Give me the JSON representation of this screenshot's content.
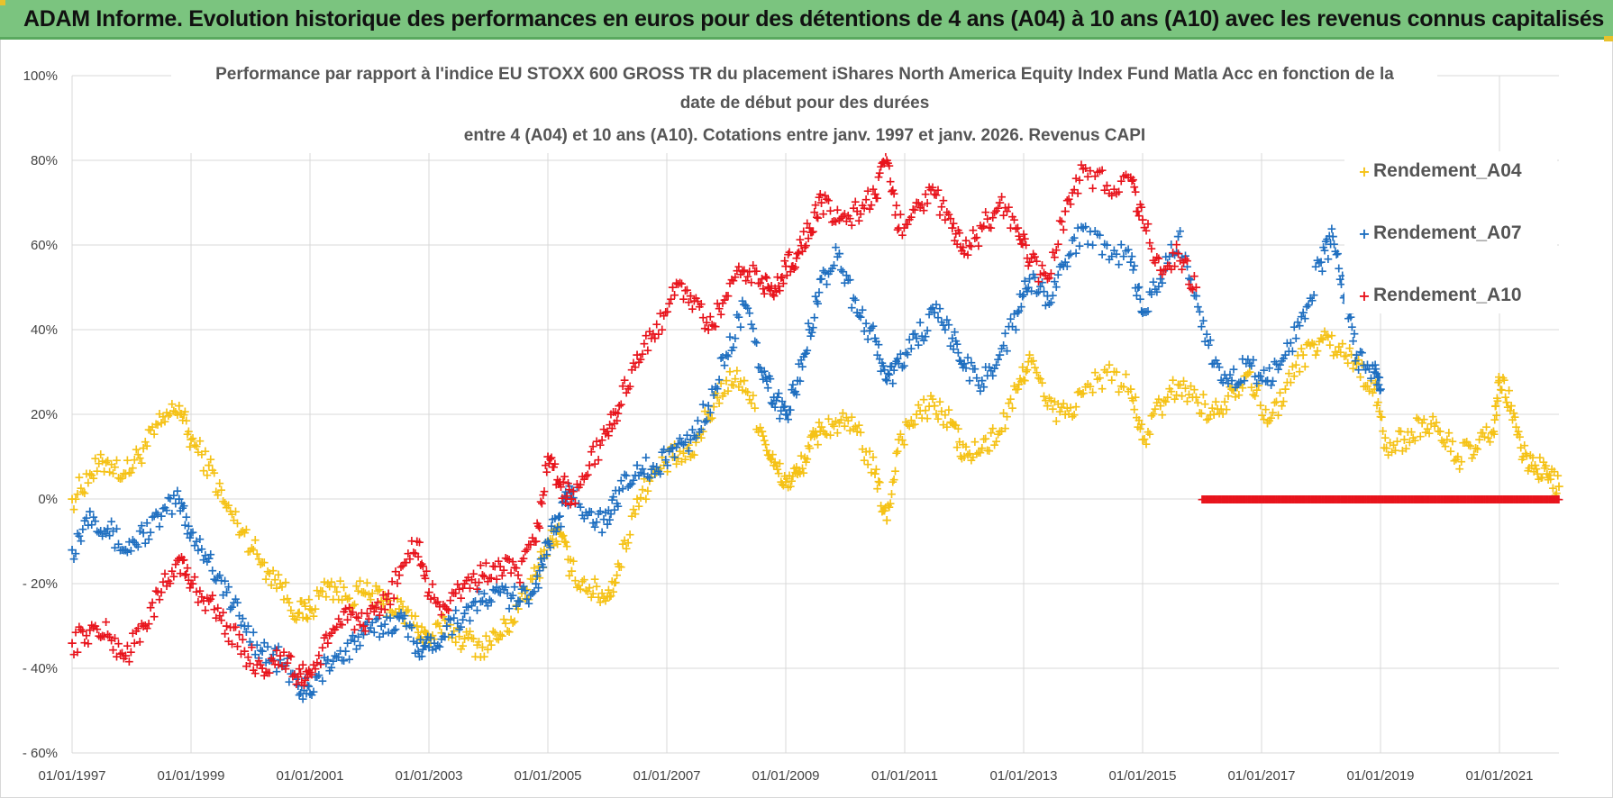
{
  "header": {
    "title": "ADAM Informe. Evolution historique des performances en euros pour des détentions de 4 ans (A04) à 10 ans (A10) avec les revenus connus capitalisés"
  },
  "chart_data": {
    "type": "scatter",
    "title_lines": [
      "Performance par rapport à l'indice EU STOXX 600 GROSS TR  du placement iShares North America Equity Index Fund Matla Acc en fonction de la",
      "date de début pour des durées",
      "entre 4 (A04) et 10 ans (A10).  Cotations entre janv. 1997 et janv. 2026. Revenus CAPI"
    ],
    "xlabel": "",
    "ylabel": "",
    "xlim": [
      1997.0,
      2022.0
    ],
    "ylim": [
      -60,
      100
    ],
    "y_ticks": [
      {
        "value": 100,
        "label": "100%"
      },
      {
        "value": 80,
        "label": "80%"
      },
      {
        "value": 60,
        "label": "60%"
      },
      {
        "value": 40,
        "label": "40%"
      },
      {
        "value": 20,
        "label": "20%"
      },
      {
        "value": 0,
        "label": "0%"
      },
      {
        "value": -20,
        "label": "- 20%"
      },
      {
        "value": -40,
        "label": "- 40%"
      },
      {
        "value": -60,
        "label": "- 60%"
      }
    ],
    "x_ticks": [
      {
        "value": 1997,
        "label": "01/01/1997"
      },
      {
        "value": 1999,
        "label": "01/01/1999"
      },
      {
        "value": 2001,
        "label": "01/01/2001"
      },
      {
        "value": 2003,
        "label": "01/01/2003"
      },
      {
        "value": 2005,
        "label": "01/01/2005"
      },
      {
        "value": 2007,
        "label": "01/01/2007"
      },
      {
        "value": 2009,
        "label": "01/01/2009"
      },
      {
        "value": 2011,
        "label": "01/01/2011"
      },
      {
        "value": 2013,
        "label": "01/01/2013"
      },
      {
        "value": 2015,
        "label": "01/01/2015"
      },
      {
        "value": 2017,
        "label": "01/01/2017"
      },
      {
        "value": 2019,
        "label": "01/01/2019"
      },
      {
        "value": 2021,
        "label": "01/01/2021"
      }
    ],
    "legend_position": "top-right",
    "marker": "+",
    "series": [
      {
        "name": "Rendement_A04",
        "color": "#f5c216",
        "points": [
          [
            1997.0,
            0
          ],
          [
            1997.3,
            6
          ],
          [
            1997.6,
            9
          ],
          [
            1997.9,
            6
          ],
          [
            1998.2,
            12
          ],
          [
            1998.5,
            18
          ],
          [
            1998.8,
            22
          ],
          [
            1999.0,
            14
          ],
          [
            1999.3,
            8
          ],
          [
            1999.6,
            -2
          ],
          [
            1999.9,
            -8
          ],
          [
            2000.2,
            -15
          ],
          [
            2000.5,
            -20
          ],
          [
            2000.8,
            -27
          ],
          [
            2001.0,
            -26
          ],
          [
            2001.3,
            -20
          ],
          [
            2001.6,
            -23
          ],
          [
            2001.9,
            -22
          ],
          [
            2002.2,
            -24
          ],
          [
            2002.5,
            -26
          ],
          [
            2002.8,
            -30
          ],
          [
            2003.0,
            -33
          ],
          [
            2003.3,
            -30
          ],
          [
            2003.6,
            -33
          ],
          [
            2003.9,
            -35
          ],
          [
            2004.2,
            -32
          ],
          [
            2004.5,
            -26
          ],
          [
            2004.8,
            -18
          ],
          [
            2005.0,
            -10
          ],
          [
            2005.2,
            -8
          ],
          [
            2005.4,
            -17
          ],
          [
            2005.7,
            -21
          ],
          [
            2006.0,
            -23
          ],
          [
            2006.2,
            -16
          ],
          [
            2006.5,
            0
          ],
          [
            2006.8,
            6
          ],
          [
            2007.1,
            10
          ],
          [
            2007.4,
            10
          ],
          [
            2007.7,
            20
          ],
          [
            2008.0,
            28
          ],
          [
            2008.3,
            28
          ],
          [
            2008.6,
            16
          ],
          [
            2008.8,
            8
          ],
          [
            2009.0,
            4
          ],
          [
            2009.2,
            6
          ],
          [
            2009.4,
            12
          ],
          [
            2009.6,
            17
          ],
          [
            2009.9,
            18
          ],
          [
            2010.2,
            16
          ],
          [
            2010.5,
            6
          ],
          [
            2010.7,
            -5
          ],
          [
            2010.9,
            14
          ],
          [
            2011.2,
            20
          ],
          [
            2011.5,
            22
          ],
          [
            2011.8,
            18
          ],
          [
            2012.0,
            10
          ],
          [
            2012.3,
            12
          ],
          [
            2012.6,
            16
          ],
          [
            2012.9,
            26
          ],
          [
            2013.1,
            34
          ],
          [
            2013.4,
            22
          ],
          [
            2013.7,
            20
          ],
          [
            2014.0,
            25
          ],
          [
            2014.4,
            30
          ],
          [
            2014.8,
            26
          ],
          [
            2015.0,
            14
          ],
          [
            2015.3,
            22
          ],
          [
            2015.6,
            27
          ],
          [
            2015.9,
            24
          ],
          [
            2016.2,
            20
          ],
          [
            2016.5,
            26
          ],
          [
            2016.8,
            30
          ],
          [
            2017.1,
            18
          ],
          [
            2017.4,
            26
          ],
          [
            2017.7,
            34
          ],
          [
            2018.0,
            38
          ],
          [
            2018.3,
            36
          ],
          [
            2018.6,
            32
          ],
          [
            2018.9,
            26
          ],
          [
            2019.1,
            12
          ],
          [
            2019.4,
            14
          ],
          [
            2019.7,
            18
          ],
          [
            2020.0,
            16
          ],
          [
            2020.3,
            10
          ],
          [
            2020.6,
            12
          ],
          [
            2020.9,
            16
          ],
          [
            2021.0,
            28
          ],
          [
            2021.2,
            22
          ],
          [
            2021.4,
            10
          ],
          [
            2021.6,
            8
          ],
          [
            2021.8,
            6
          ],
          [
            2022.0,
            3
          ]
        ]
      },
      {
        "name": "Rendement_A07",
        "color": "#1f6fc0",
        "points": [
          [
            1997.0,
            -12
          ],
          [
            1997.3,
            -3
          ],
          [
            1997.6,
            -7
          ],
          [
            1997.9,
            -12
          ],
          [
            1998.2,
            -8
          ],
          [
            1998.5,
            -4
          ],
          [
            1998.8,
            0
          ],
          [
            1999.0,
            -8
          ],
          [
            1999.3,
            -14
          ],
          [
            1999.6,
            -22
          ],
          [
            1999.9,
            -30
          ],
          [
            2000.2,
            -36
          ],
          [
            2000.5,
            -38
          ],
          [
            2000.8,
            -44
          ],
          [
            2001.0,
            -46
          ],
          [
            2001.3,
            -38
          ],
          [
            2001.6,
            -36
          ],
          [
            2001.9,
            -32
          ],
          [
            2002.2,
            -30
          ],
          [
            2002.5,
            -28
          ],
          [
            2002.8,
            -34
          ],
          [
            2003.0,
            -35
          ],
          [
            2003.3,
            -30
          ],
          [
            2003.6,
            -27
          ],
          [
            2003.9,
            -24
          ],
          [
            2004.2,
            -22
          ],
          [
            2004.5,
            -24
          ],
          [
            2004.8,
            -20
          ],
          [
            2005.0,
            -10
          ],
          [
            2005.2,
            -4
          ],
          [
            2005.4,
            2
          ],
          [
            2005.7,
            -3
          ],
          [
            2006.0,
            -6
          ],
          [
            2006.2,
            2
          ],
          [
            2006.5,
            8
          ],
          [
            2006.8,
            6
          ],
          [
            2007.1,
            12
          ],
          [
            2007.4,
            14
          ],
          [
            2007.7,
            22
          ],
          [
            2008.0,
            34
          ],
          [
            2008.3,
            46
          ],
          [
            2008.6,
            30
          ],
          [
            2008.8,
            24
          ],
          [
            2009.0,
            20
          ],
          [
            2009.2,
            28
          ],
          [
            2009.4,
            40
          ],
          [
            2009.6,
            52
          ],
          [
            2009.9,
            58
          ],
          [
            2010.2,
            44
          ],
          [
            2010.5,
            38
          ],
          [
            2010.7,
            28
          ],
          [
            2010.9,
            32
          ],
          [
            2011.2,
            38
          ],
          [
            2011.5,
            44
          ],
          [
            2011.8,
            38
          ],
          [
            2012.0,
            32
          ],
          [
            2012.3,
            28
          ],
          [
            2012.6,
            34
          ],
          [
            2012.9,
            44
          ],
          [
            2013.1,
            52
          ],
          [
            2013.4,
            48
          ],
          [
            2013.7,
            56
          ],
          [
            2014.0,
            64
          ],
          [
            2014.4,
            60
          ],
          [
            2014.8,
            56
          ],
          [
            2015.0,
            44
          ],
          [
            2015.3,
            52
          ],
          [
            2015.6,
            62
          ],
          [
            2015.9,
            48
          ],
          [
            2016.2,
            32
          ],
          [
            2016.5,
            28
          ],
          [
            2016.8,
            32
          ],
          [
            2017.1,
            28
          ],
          [
            2017.4,
            34
          ],
          [
            2017.7,
            44
          ],
          [
            2018.0,
            56
          ],
          [
            2018.2,
            62
          ],
          [
            2018.4,
            48
          ],
          [
            2018.6,
            34
          ],
          [
            2018.9,
            30
          ],
          [
            2019.0,
            26
          ]
        ]
      },
      {
        "name": "Rendement_A10",
        "color": "#e8141c",
        "points": [
          [
            1997.0,
            -34
          ],
          [
            1997.3,
            -31
          ],
          [
            1997.6,
            -32
          ],
          [
            1997.9,
            -37
          ],
          [
            1998.2,
            -30
          ],
          [
            1998.5,
            -22
          ],
          [
            1998.8,
            -14
          ],
          [
            1999.0,
            -20
          ],
          [
            1999.3,
            -24
          ],
          [
            1999.6,
            -30
          ],
          [
            1999.9,
            -36
          ],
          [
            2000.2,
            -40
          ],
          [
            2000.5,
            -37
          ],
          [
            2000.8,
            -42
          ],
          [
            2001.0,
            -41
          ],
          [
            2001.3,
            -34
          ],
          [
            2001.6,
            -26
          ],
          [
            2001.9,
            -30
          ],
          [
            2002.2,
            -26
          ],
          [
            2002.5,
            -18
          ],
          [
            2002.8,
            -10
          ],
          [
            2003.0,
            -22
          ],
          [
            2003.3,
            -26
          ],
          [
            2003.6,
            -20
          ],
          [
            2003.9,
            -18
          ],
          [
            2004.2,
            -16
          ],
          [
            2004.5,
            -18
          ],
          [
            2004.8,
            -10
          ],
          [
            2005.0,
            10
          ],
          [
            2005.2,
            4
          ],
          [
            2005.4,
            0
          ],
          [
            2005.7,
            8
          ],
          [
            2006.0,
            16
          ],
          [
            2006.2,
            22
          ],
          [
            2006.5,
            34
          ],
          [
            2006.8,
            38
          ],
          [
            2007.1,
            50
          ],
          [
            2007.4,
            48
          ],
          [
            2007.7,
            40
          ],
          [
            2008.0,
            48
          ],
          [
            2008.3,
            54
          ],
          [
            2008.6,
            52
          ],
          [
            2008.8,
            48
          ],
          [
            2009.0,
            55
          ],
          [
            2009.2,
            58
          ],
          [
            2009.4,
            64
          ],
          [
            2009.6,
            70
          ],
          [
            2009.9,
            66
          ],
          [
            2010.2,
            68
          ],
          [
            2010.5,
            72
          ],
          [
            2010.7,
            80
          ],
          [
            2010.9,
            64
          ],
          [
            2011.2,
            70
          ],
          [
            2011.5,
            72
          ],
          [
            2011.8,
            64
          ],
          [
            2012.0,
            58
          ],
          [
            2012.3,
            64
          ],
          [
            2012.6,
            70
          ],
          [
            2012.9,
            64
          ],
          [
            2013.1,
            56
          ],
          [
            2013.4,
            52
          ],
          [
            2013.7,
            68
          ],
          [
            2014.0,
            78
          ],
          [
            2014.4,
            74
          ],
          [
            2014.8,
            76
          ],
          [
            2015.0,
            66
          ],
          [
            2015.3,
            54
          ],
          [
            2015.6,
            58
          ],
          [
            2015.9,
            50
          ]
        ],
        "flat_zero_range": [
          2016.0,
          2022.0
        ]
      }
    ]
  }
}
